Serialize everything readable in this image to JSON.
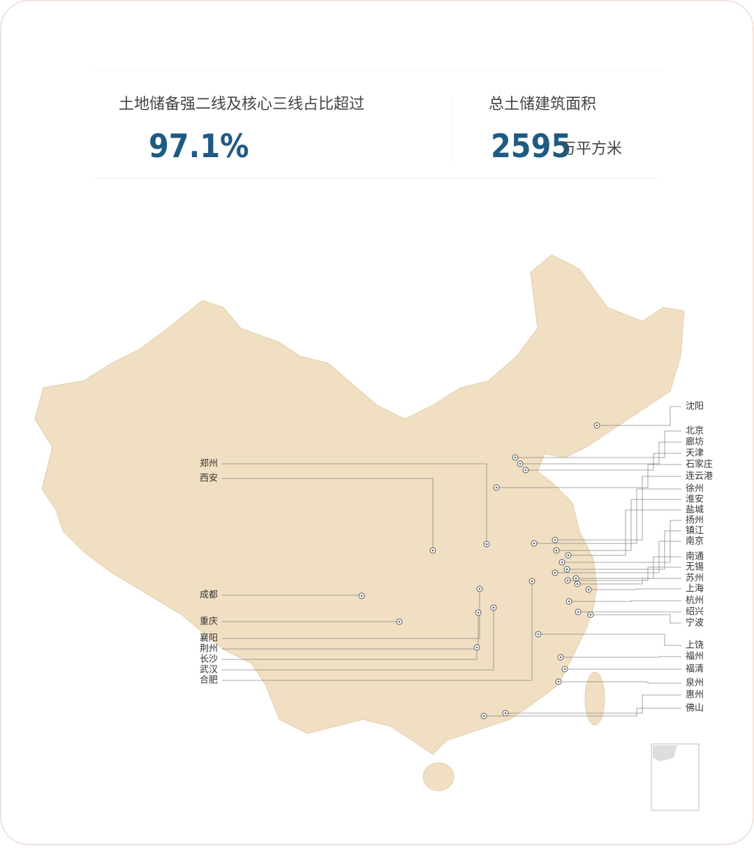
{
  "header": {
    "stats": [
      {
        "label": "土地储备强二线及核心三线占比超过",
        "value": "97.1%"
      },
      {
        "label": "总土储建筑面积",
        "value": "2595",
        "unit": "万平方米"
      }
    ]
  },
  "map": {
    "left_cities": [
      "郑州",
      "西安",
      "成都",
      "重庆",
      "襄阳",
      "荆州",
      "长沙",
      "武汉",
      "合肥"
    ],
    "right_cities": [
      "沈阳",
      "北京",
      "廊坊",
      "天津",
      "石家庄",
      "连云港",
      "徐州",
      "淮安",
      "盐城",
      "扬州",
      "镇江",
      "南京",
      "南通",
      "无锡",
      "苏州",
      "上海",
      "杭州",
      "绍兴",
      "宁波",
      "上饶",
      "福州",
      "福清",
      "泉州",
      "惠州",
      "佛山"
    ]
  }
}
